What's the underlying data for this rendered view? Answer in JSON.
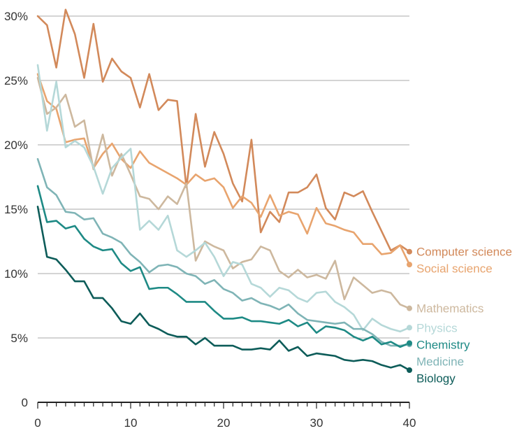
{
  "chart_data": {
    "type": "line",
    "title": "",
    "xlabel": "",
    "ylabel": "",
    "xlim": [
      0,
      40
    ],
    "ylim": [
      0,
      30
    ],
    "x_ticks": [
      "0",
      "10",
      "20",
      "30",
      "40"
    ],
    "y_ticks": [
      "0",
      "5%",
      "10%",
      "15%",
      "20%",
      "25%",
      "30%"
    ],
    "grid": "horizontal",
    "legend": "end-of-line labels (right)",
    "x": [
      0,
      1,
      2,
      3,
      4,
      5,
      6,
      7,
      8,
      9,
      10,
      11,
      12,
      13,
      14,
      15,
      16,
      17,
      18,
      19,
      20,
      21,
      22,
      23,
      24,
      25,
      26,
      27,
      28,
      29,
      30,
      31,
      32,
      33,
      34,
      35,
      36,
      37,
      38,
      39,
      40
    ],
    "series": [
      {
        "name": "Computer science",
        "color": "#d2895a",
        "values": [
          30,
          29.3,
          26,
          30.5,
          28.6,
          25.2,
          29.4,
          24.9,
          26.7,
          25.7,
          25.2,
          22.9,
          25.5,
          22.7,
          23.5,
          23.4,
          16.7,
          22.4,
          18.3,
          21,
          19.3,
          17,
          15.6,
          20.4,
          13.2,
          14.8,
          14,
          16.3,
          16.3,
          16.7,
          17.7,
          15.1,
          14.2,
          16.3,
          16,
          16.4,
          14.8,
          13.3,
          11.8,
          12.2,
          11.7
        ]
      },
      {
        "name": "Social science",
        "color": "#e8a46e",
        "values": [
          25.5,
          23.4,
          22.8,
          20.2,
          20.4,
          20.5,
          18.2,
          19.3,
          20.1,
          18.9,
          18.2,
          19.5,
          18.6,
          18.2,
          17.8,
          17.4,
          16.9,
          17.7,
          17.2,
          17.4,
          16.7,
          15.1,
          16,
          15.5,
          14.4,
          16.1,
          14.5,
          14.8,
          14.6,
          13.1,
          15.1,
          13.9,
          13.7,
          13.4,
          13.2,
          12.3,
          12.3,
          11.5,
          11.6,
          12.2,
          10.7
        ]
      },
      {
        "name": "Mathematics",
        "color": "#cdb89e",
        "values": [
          25.2,
          22.4,
          22.9,
          23.9,
          21.4,
          21.9,
          18.1,
          20.8,
          17.6,
          19.3,
          17.7,
          16,
          15.8,
          15,
          16,
          15.4,
          17,
          11,
          12.5,
          12.1,
          11.8,
          10.4,
          10.9,
          11.1,
          12.1,
          11.8,
          10.2,
          9.7,
          10.3,
          9.7,
          9.9,
          9.6,
          11,
          8,
          9.7,
          9.1,
          8.5,
          8.7,
          8.5,
          7.6,
          7.3
        ]
      },
      {
        "name": "Physics",
        "color": "#b5d8d8",
        "values": [
          26.2,
          21.1,
          24.9,
          19.8,
          20.3,
          19.8,
          18.3,
          16.2,
          18.2,
          19,
          19.7,
          13.4,
          14.1,
          13.4,
          14.5,
          11.8,
          11.3,
          11.8,
          12.4,
          11.3,
          9.8,
          10.9,
          10.7,
          9.2,
          8.9,
          8.2,
          8.9,
          8.7,
          8.1,
          7.8,
          8.5,
          8.6,
          7.8,
          7.4,
          6.8,
          5.6,
          6.5,
          6,
          5.7,
          5.5,
          5.8
        ]
      },
      {
        "name": "Medicine",
        "color": "#7fb4b6",
        "values": [
          18.9,
          16.7,
          16.1,
          14.8,
          14.7,
          14.2,
          14.3,
          13.1,
          12.8,
          12.4,
          11.5,
          10.9,
          10.1,
          10.6,
          10.7,
          10.5,
          10,
          9.8,
          9.2,
          9.5,
          8.8,
          8.5,
          7.9,
          8.1,
          7.7,
          7.5,
          7.2,
          7.6,
          6.9,
          6.4,
          6.3,
          6.2,
          6.1,
          6.2,
          5.7,
          5.7,
          5.3,
          4.7,
          4.4,
          4.4,
          4.5
        ]
      },
      {
        "name": "Chemistry",
        "color": "#1e8a85",
        "values": [
          16.8,
          14,
          14.1,
          13.5,
          13.7,
          12.7,
          12.1,
          11.8,
          11.9,
          10.8,
          10.2,
          10.5,
          8.8,
          8.9,
          8.9,
          8.4,
          7.8,
          7.8,
          7.8,
          7.1,
          6.5,
          6.5,
          6.6,
          6.3,
          6.3,
          6.2,
          6.1,
          6.4,
          5.9,
          6.2,
          5.4,
          5.9,
          5.8,
          5.6,
          5.1,
          4.8,
          5.1,
          4.5,
          4.7,
          4.3,
          4.6
        ]
      },
      {
        "name": "Biology",
        "color": "#0d5c59",
        "values": [
          15.2,
          11.3,
          11.1,
          10.3,
          9.4,
          9.4,
          8.1,
          8.1,
          7.3,
          6.3,
          6.1,
          6.9,
          6,
          5.7,
          5.3,
          5.1,
          5.1,
          4.5,
          5,
          4.4,
          4.4,
          4.4,
          4.1,
          4.1,
          4.2,
          4.1,
          4.8,
          4,
          4.3,
          3.6,
          3.8,
          3.7,
          3.6,
          3.3,
          3.2,
          3.3,
          3.2,
          2.9,
          2.7,
          2.9,
          2.5
        ]
      }
    ]
  }
}
